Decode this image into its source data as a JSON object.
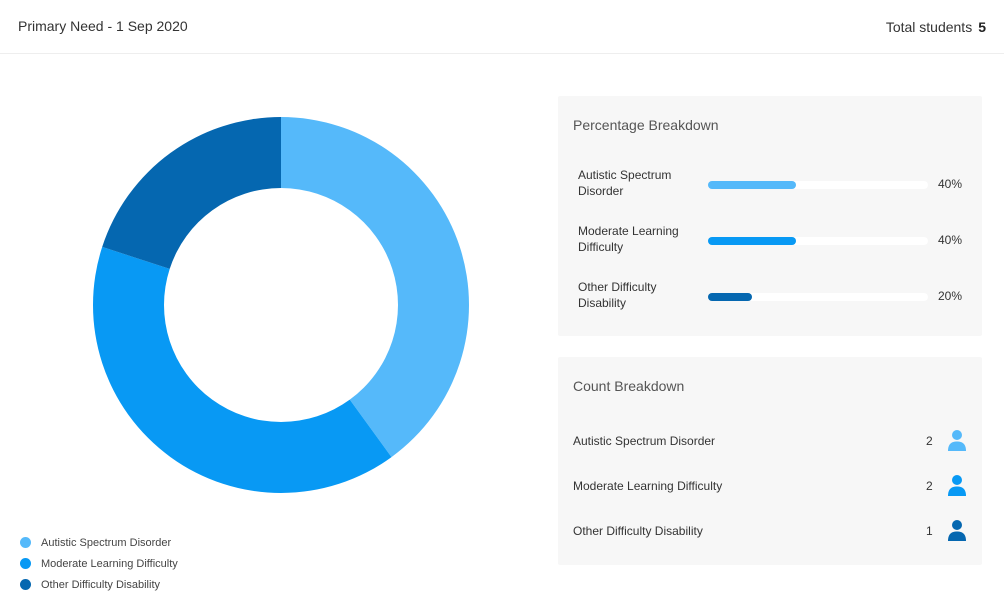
{
  "header": {
    "title": "Primary Need - 1 Sep 2020",
    "total_label": "Total students",
    "total_value": "5"
  },
  "chart_data": {
    "type": "pie",
    "variant": "donut",
    "categories": [
      "Autistic Spectrum Disorder",
      "Moderate Learning Difficulty",
      "Other Difficulty Disability"
    ],
    "values": [
      2,
      2,
      1
    ],
    "colors": [
      "#55b9fa",
      "#0899f4",
      "#0567b0"
    ],
    "legend_position": "bottom-left"
  },
  "legend": [
    {
      "label": "Autistic Spectrum Disorder",
      "color": "#55b9fa"
    },
    {
      "label": "Moderate Learning Difficulty",
      "color": "#0899f4"
    },
    {
      "label": "Other Difficulty Disability",
      "color": "#0567b0"
    }
  ],
  "percentage_breakdown": {
    "title": "Percentage Breakdown",
    "rows": [
      {
        "line1": "Autistic Spectrum",
        "line2": "Disorder",
        "percent": 40,
        "percent_label": "40%",
        "color": "#55b9fa"
      },
      {
        "line1": "Moderate Learning",
        "line2": "Difficulty",
        "percent": 40,
        "percent_label": "40%",
        "color": "#0899f4"
      },
      {
        "line1": "Other Difficulty",
        "line2": "Disability",
        "percent": 20,
        "percent_label": "20%",
        "color": "#0567b0"
      }
    ]
  },
  "count_breakdown": {
    "title": "Count Breakdown",
    "rows": [
      {
        "label": "Autistic Spectrum Disorder",
        "count": "2",
        "icon": "person-icon",
        "color": "#55b9fa"
      },
      {
        "label": "Moderate Learning Difficulty",
        "count": "2",
        "icon": "person-icon",
        "color": "#0899f4"
      },
      {
        "label": "Other Difficulty Disability",
        "count": "1",
        "icon": "person-icon",
        "color": "#0567b0"
      }
    ]
  }
}
